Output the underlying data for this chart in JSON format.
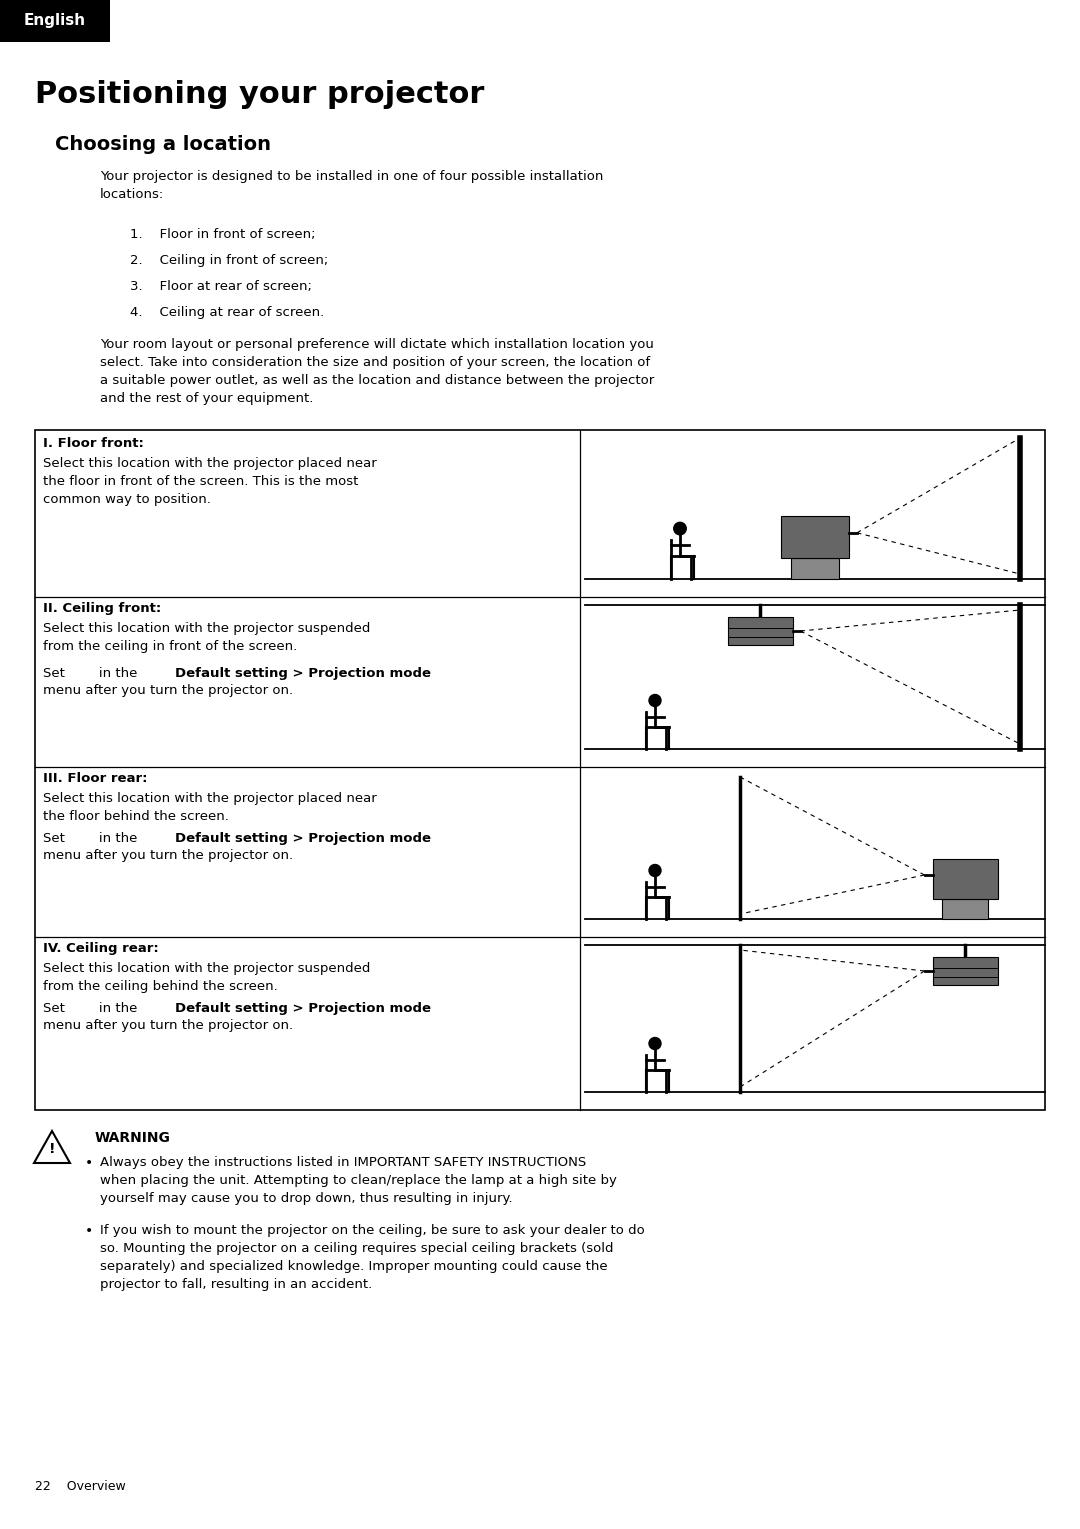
{
  "bg_color": "#ffffff",
  "page_width": 10.8,
  "page_height": 15.29,
  "title": "Positioning your projector",
  "subtitle": "Choosing a location",
  "body_text_1": "Your projector is designed to be installed in one of four possible installation\nlocations:",
  "list_items": [
    "1.    Floor in front of screen;",
    "2.    Ceiling in front of screen;",
    "3.    Floor at rear of screen;",
    "4.    Ceiling at rear of screen."
  ],
  "body_text_2": "Your room layout or personal preference will dictate which installation location you\nselect. Take into consideration the size and position of your screen, the location of\na suitable power outlet, as well as the location and distance between the projector\nand the rest of your equipment.",
  "warning_bullets": [
    "Always obey the instructions listed in IMPORTANT SAFETY INSTRUCTIONS\nwhen placing the unit. Attempting to clean/replace the lamp at a high site by\nyourself may cause you to drop down, thus resulting in injury.",
    "If you wish to mount the projector on the ceiling, be sure to ask your dealer to do\nso. Mounting the projector on a ceiling requires special ceiling brackets (sold\nseparately) and specialized knowledge. Improper mounting could cause the\nprojector to fall, resulting in an accident."
  ],
  "footer": "22    Overview",
  "english_badge_text": "English"
}
